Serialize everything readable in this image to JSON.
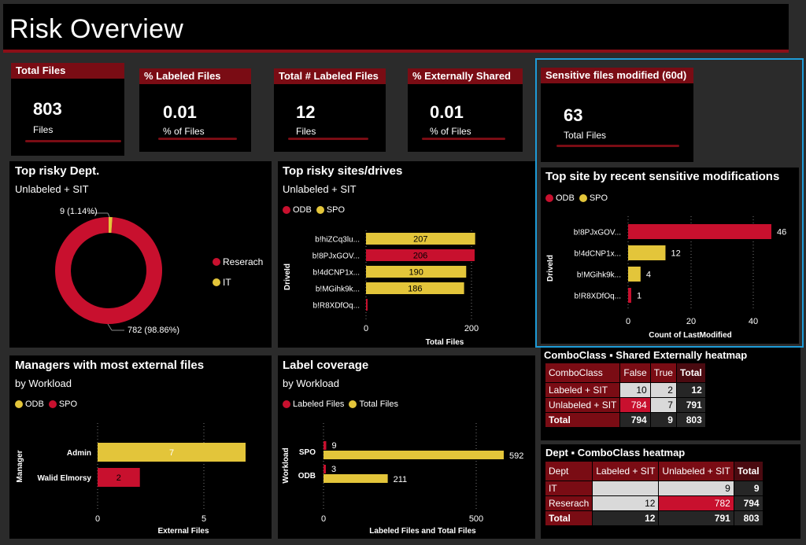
{
  "page_title": "Risk Overview",
  "colors": {
    "accent": "#7a0c14",
    "red": "#c8102e",
    "yellow": "#e3c53a",
    "panel": "#000000",
    "selection": "#1e9bd7"
  },
  "kpis": [
    {
      "title": "Total Files",
      "value": "803",
      "unit": "Files"
    },
    {
      "title": "% Labeled Files",
      "value": "0.01",
      "unit": "% of Files"
    },
    {
      "title": "Total # Labeled Files",
      "value": "12",
      "unit": "Files"
    },
    {
      "title": "% Externally Shared",
      "value": "0.01",
      "unit": "% of Files"
    },
    {
      "title": "Sensitive files modified (60d)",
      "value": "63",
      "unit": "Total Files"
    }
  ],
  "dept_panel": {
    "title": "Top risky Dept.",
    "subtitle": "Unlabeled + SIT",
    "label_small": "9 (1.14%)",
    "label_large": "782 (98.86%)",
    "legend": [
      "Reserach",
      "IT"
    ]
  },
  "sites_panel": {
    "title": "Top risky sites/drives",
    "subtitle": "Unlabeled + SIT",
    "legend": [
      "ODB",
      "SPO"
    ],
    "ylabel": "DriveId",
    "xlabel": "Total Files",
    "ticks": [
      "0",
      "200"
    ]
  },
  "recent_panel": {
    "title": "Top site by recent sensitive modifications",
    "legend": [
      "ODB",
      "SPO"
    ],
    "ylabel": "DriveId",
    "xlabel": "Count of LastModified",
    "ticks": [
      "0",
      "20",
      "40"
    ]
  },
  "managers_panel": {
    "title": "Managers with most external files",
    "subtitle": "by Workload",
    "legend": [
      "ODB",
      "SPO"
    ],
    "ylabel": "Manager",
    "xlabel": "External Files",
    "ticks": [
      "0",
      "5"
    ]
  },
  "coverage_panel": {
    "title": "Label coverage",
    "subtitle": "by Workload",
    "legend": [
      "Labeled Files",
      "Total Files"
    ],
    "ylabel": "Workload",
    "xlabel": "Labeled Files and Total Files",
    "ticks": [
      "0",
      "500"
    ]
  },
  "chart_data": [
    {
      "type": "pie",
      "categories": [
        "Reserach",
        "IT"
      ],
      "values": [
        782,
        9
      ],
      "title": "Top risky Dept.",
      "subtitle": "Unlabeled + SIT"
    },
    {
      "type": "bar",
      "categories": [
        "b!hiZCq3lu...",
        "b!8PJxGOV...",
        "b!4dCNP1x...",
        "b!MGihk9k...",
        "b!R8XDfOq..."
      ],
      "values": [
        207,
        206,
        190,
        186,
        2
      ],
      "series_colors": [
        "SPO",
        "ODB",
        "SPO",
        "SPO",
        "ODB"
      ],
      "xlim": [
        0,
        215
      ],
      "title": "Top risky sites/drives",
      "subtitle": "Unlabeled + SIT",
      "xlabel": "Total Files",
      "ylabel": "DriveId"
    },
    {
      "type": "bar",
      "categories": [
        "b!8PJxGOV...",
        "b!4dCNP1x...",
        "b!MGihk9k...",
        "b!R8XDfOq..."
      ],
      "values": [
        46,
        12,
        4,
        1
      ],
      "series_colors": [
        "ODB",
        "SPO",
        "SPO",
        "ODB"
      ],
      "xlim": [
        0,
        46
      ],
      "title": "Top site by recent sensitive modifications",
      "xlabel": "Count of LastModified",
      "ylabel": "DriveId"
    },
    {
      "type": "bar",
      "categories": [
        "Admin",
        "Walid Elmorsy"
      ],
      "values": [
        7,
        2
      ],
      "series_colors": [
        "SPO",
        "ODB"
      ],
      "xlim": [
        0,
        7
      ],
      "title": "Managers with most external files",
      "subtitle": "by Workload",
      "xlabel": "External Files",
      "ylabel": "Manager"
    },
    {
      "type": "bar",
      "categories": [
        "SPO",
        "ODB"
      ],
      "series": [
        {
          "name": "Labeled Files",
          "values": [
            9,
            3
          ]
        },
        {
          "name": "Total Files",
          "values": [
            592,
            211
          ]
        }
      ],
      "xlim": [
        0,
        592
      ],
      "title": "Label coverage",
      "subtitle": "by Workload",
      "xlabel": "Labeled Files and Total Files",
      "ylabel": "Workload"
    },
    {
      "type": "table",
      "title": "ComboClass ▪ Shared Externally heatmap",
      "columns": [
        "ComboClass",
        "False",
        "True",
        "Total"
      ],
      "rows": [
        [
          "Labeled + SIT",
          "10",
          "2",
          "12"
        ],
        [
          "Unlabeled + SIT",
          "784",
          "7",
          "791"
        ],
        [
          "Total",
          "794",
          "9",
          "803"
        ]
      ]
    },
    {
      "type": "table",
      "title": "Dept ▪ ComboClass heatmap",
      "columns": [
        "Dept",
        "Labeled + SIT",
        "Unlabeled + SIT",
        "Total"
      ],
      "rows": [
        [
          "IT",
          "",
          "9",
          "9"
        ],
        [
          "Reserach",
          "12",
          "782",
          "794"
        ],
        [
          "Total",
          "12",
          "791",
          "803"
        ]
      ]
    }
  ]
}
